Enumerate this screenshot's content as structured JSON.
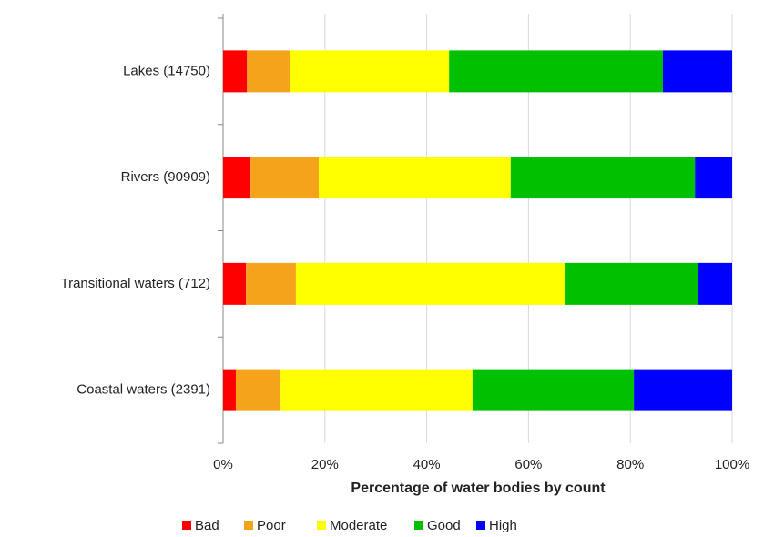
{
  "chart_data": {
    "type": "stacked-bar-horizontal",
    "categories": [
      "Lakes (14750)",
      "Rivers (90909)",
      "Transitional waters (712)",
      "Coastal waters (2391)"
    ],
    "series": [
      {
        "name": "Bad",
        "color": "#ff0000",
        "values": [
          4.7,
          5.4,
          4.5,
          2.5
        ]
      },
      {
        "name": "Poor",
        "color": "#f5a31a",
        "values": [
          8.5,
          13.4,
          9.8,
          8.8
        ]
      },
      {
        "name": "Moderate",
        "color": "#ffff00",
        "values": [
          31.2,
          37.7,
          52.8,
          37.7
        ]
      },
      {
        "name": "Good",
        "color": "#00c000",
        "values": [
          42.0,
          36.2,
          26.1,
          31.7
        ]
      },
      {
        "name": "High",
        "color": "#0000ff",
        "values": [
          13.6,
          7.3,
          6.8,
          19.3
        ]
      }
    ],
    "x_label": "Percentage of water bodies by count",
    "xlim": [
      0,
      100
    ],
    "xticks": [
      {
        "value": 0,
        "label": "0%"
      },
      {
        "value": 20,
        "label": "20%"
      },
      {
        "value": 40,
        "label": "40%"
      },
      {
        "value": 60,
        "label": "60%"
      },
      {
        "value": 80,
        "label": "80%"
      },
      {
        "value": 100,
        "label": "100%"
      }
    ],
    "grid": true,
    "legend": "bottom"
  }
}
